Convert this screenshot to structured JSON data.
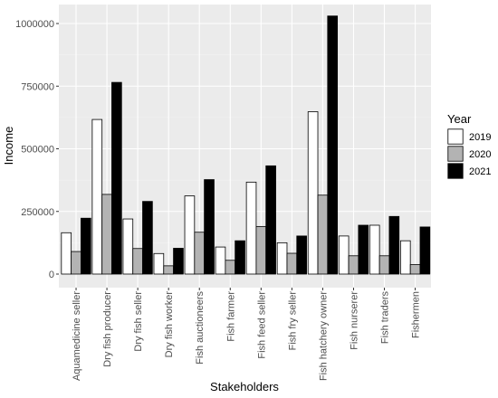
{
  "chart_data": {
    "type": "bar",
    "title": "",
    "xlabel": "Stakeholders",
    "ylabel": "Income",
    "ylim": [
      0,
      1050000
    ],
    "yticks": [
      0,
      250000,
      500000,
      750000,
      1000000
    ],
    "ytick_labels": [
      "0",
      "250000",
      "500000",
      "750000",
      "1000000"
    ],
    "grid": true,
    "legend_position": "right",
    "legend_title": "Year",
    "categories": [
      "Aquamedicine seller",
      "Dry fish producer",
      "Dry fish seller",
      "Dry fish worker",
      "Fish auctioneers",
      "Fish farmer",
      "Fish feed seller",
      "Fish fry seller",
      "Fish hatchery owner",
      "Fish nurserer",
      "Fish traders",
      "Fishermen"
    ],
    "series": [
      {
        "name": "2019",
        "color": "#ffffff",
        "values": [
          165000,
          617000,
          220000,
          82000,
          312000,
          108000,
          367000,
          125000,
          648000,
          152000,
          195000,
          133000
        ]
      },
      {
        "name": "2020",
        "color": "#b3b3b3",
        "values": [
          90000,
          318000,
          102000,
          33000,
          167000,
          55000,
          190000,
          83000,
          315000,
          73000,
          73000,
          38000
        ]
      },
      {
        "name": "2021",
        "color": "#000000",
        "values": [
          223000,
          765000,
          290000,
          103000,
          377000,
          133000,
          432000,
          152000,
          1030000,
          195000,
          230000,
          188000
        ]
      }
    ]
  }
}
